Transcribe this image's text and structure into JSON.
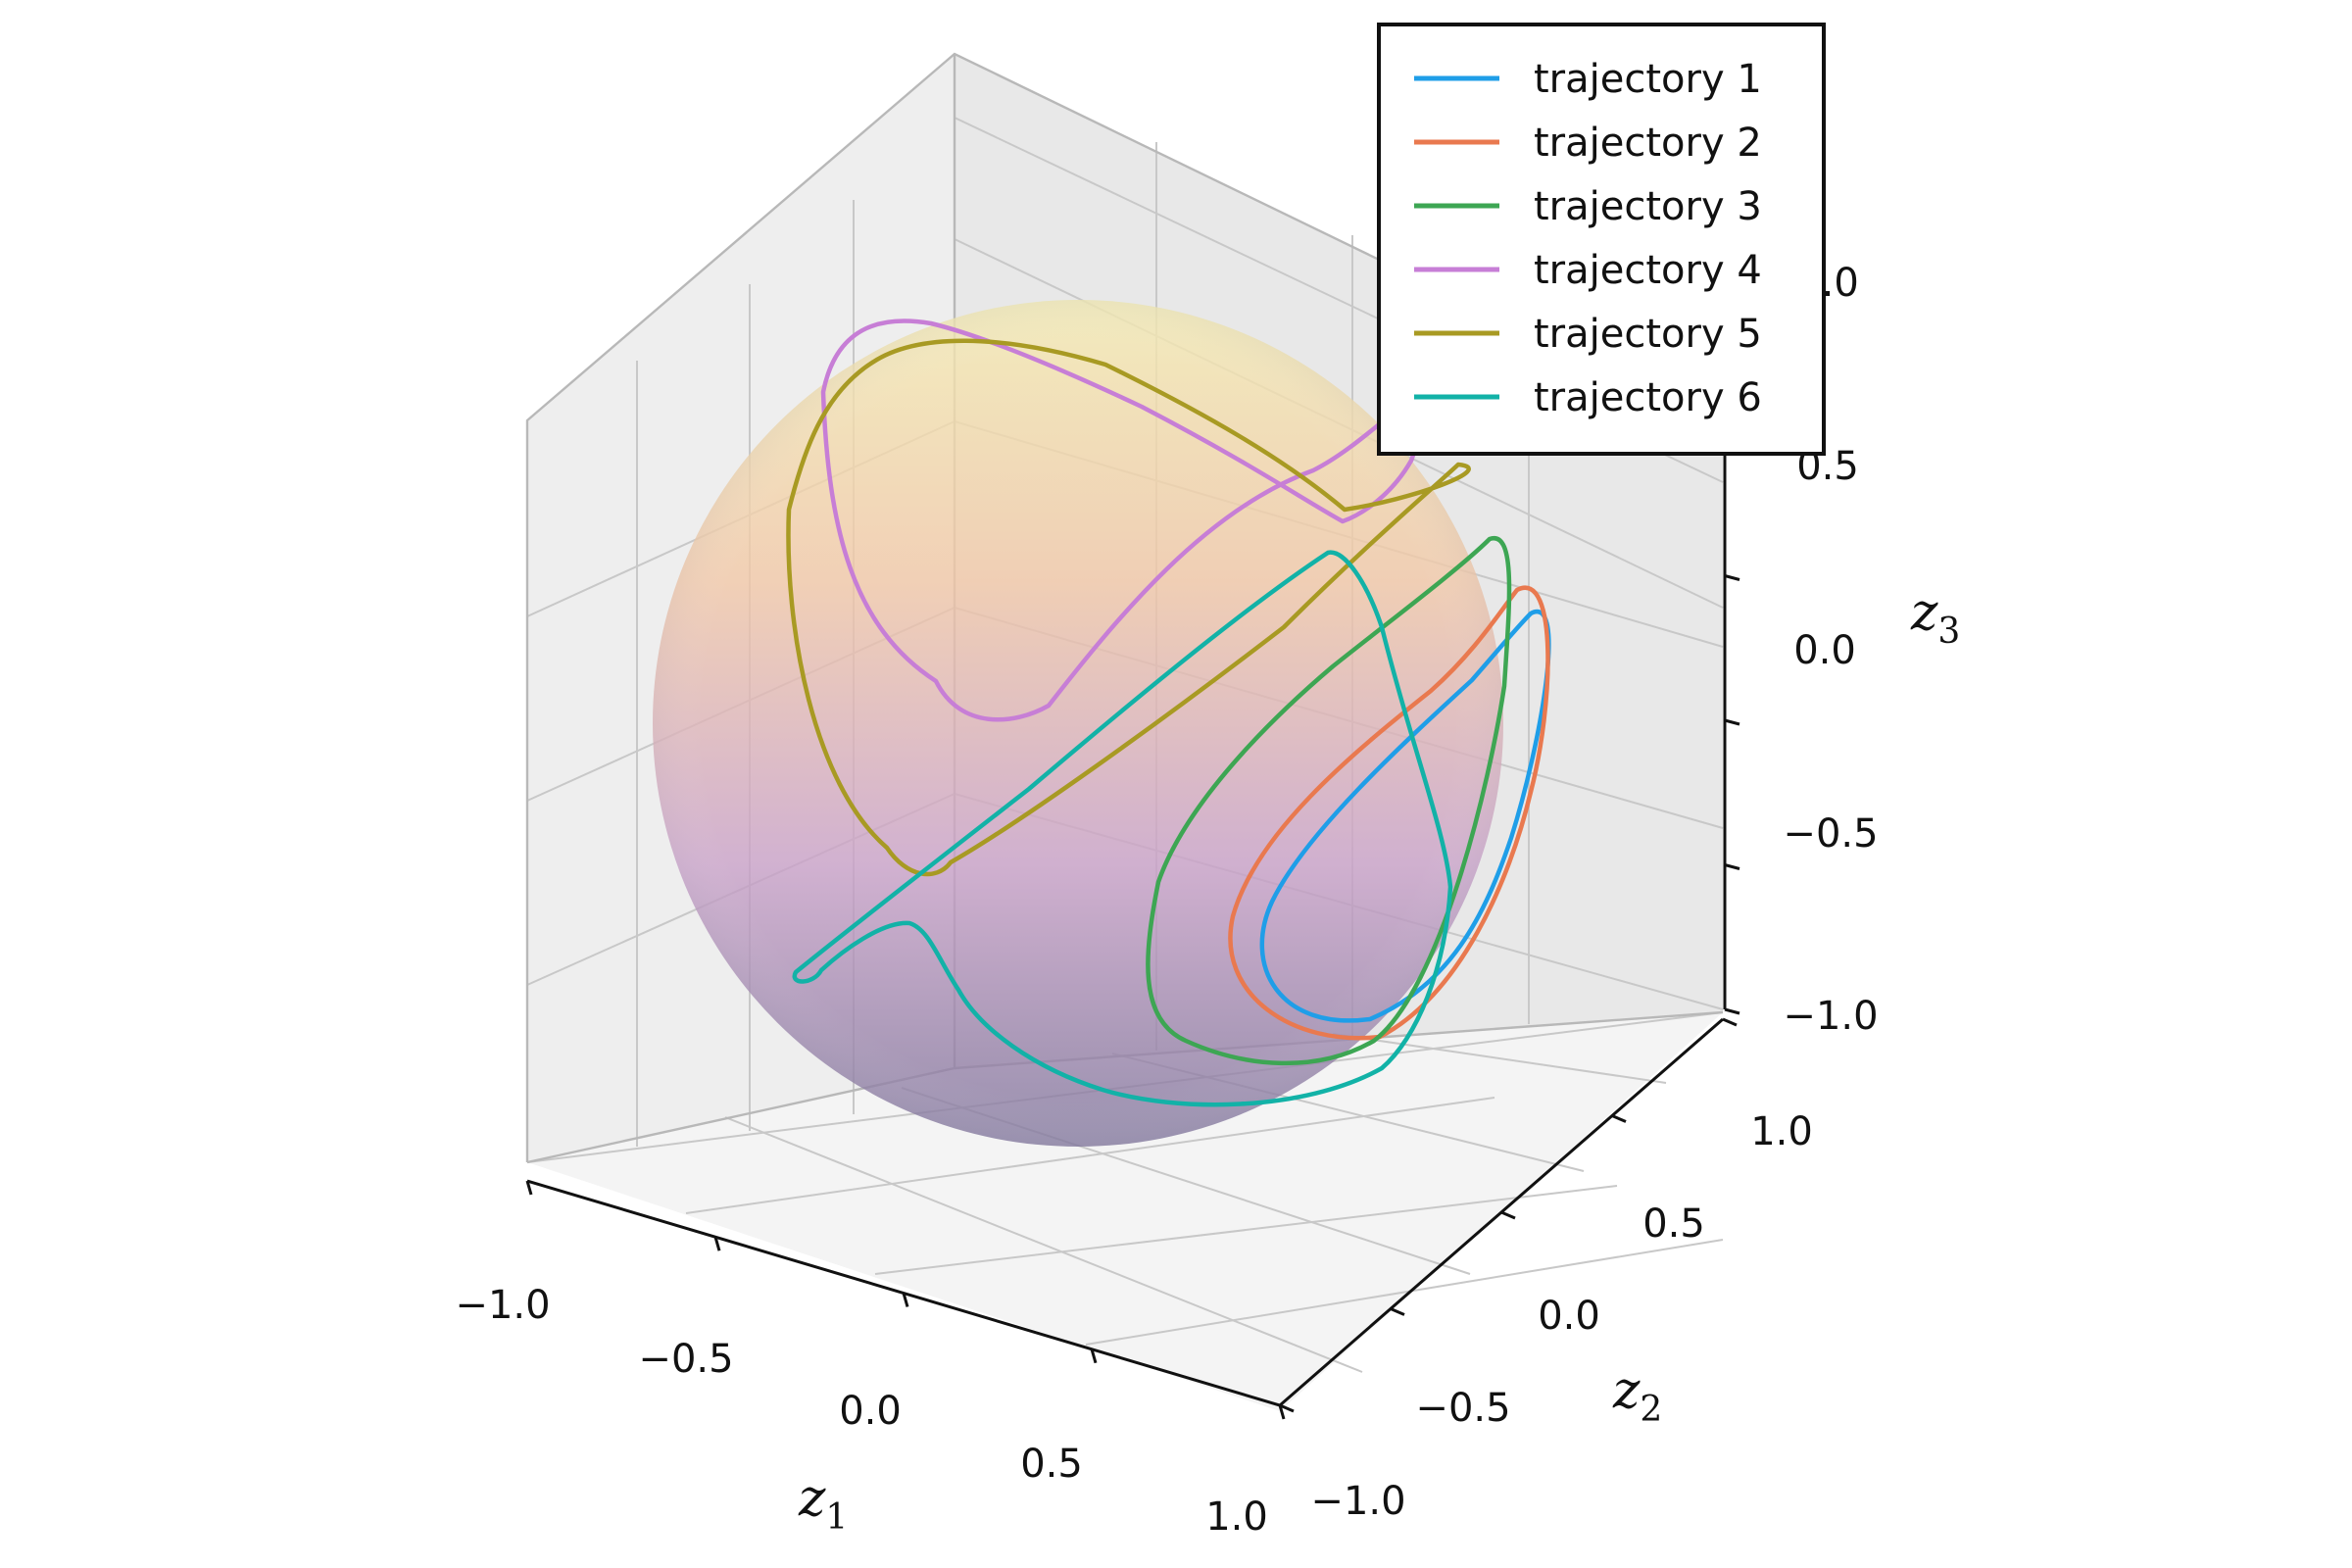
{
  "chart_data": {
    "type": "line",
    "projection": "3d",
    "title": "",
    "axes": {
      "x": {
        "label": "z",
        "label_sub": "1",
        "ticks": [
          -1.0,
          -0.5,
          0.0,
          0.5,
          1.0
        ],
        "tick_labels": [
          "−1.0",
          "−0.5",
          "0.0",
          "0.5",
          "1.0"
        ],
        "range": [
          -1.0,
          1.0
        ]
      },
      "y": {
        "label": "z",
        "label_sub": "2",
        "ticks": [
          -1.0,
          -0.5,
          0.0,
          0.5,
          1.0
        ],
        "tick_labels": [
          "−1.0",
          "−0.5",
          "0.0",
          "0.5",
          "1.0"
        ],
        "range": [
          -1.0,
          1.0
        ]
      },
      "z": {
        "label": "z",
        "label_sub": "3",
        "ticks": [
          -1.0,
          -0.5,
          0.0,
          0.5,
          1.0
        ],
        "tick_labels": [
          "−1.0",
          "−0.5",
          "0.0",
          "0.5",
          "1.0"
        ],
        "range": [
          -1.0,
          1.0
        ]
      }
    },
    "grid": true,
    "surface": {
      "kind": "unit sphere",
      "colormap": [
        "#f5ecb0",
        "#f2c7a6",
        "#c9a0c8",
        "#7d7299"
      ]
    },
    "legend": {
      "placement": "top-right"
    },
    "series": [
      {
        "name": "trajectory 1",
        "color": "#1f9ee8"
      },
      {
        "name": "trajectory 2",
        "color": "#e9794f"
      },
      {
        "name": "trajectory 3",
        "color": "#3da653"
      },
      {
        "name": "trajectory 4",
        "color": "#c77ed6"
      },
      {
        "name": "trajectory 5",
        "color": "#a89a23"
      },
      {
        "name": "trajectory 6",
        "color": "#12b2a7"
      }
    ]
  }
}
